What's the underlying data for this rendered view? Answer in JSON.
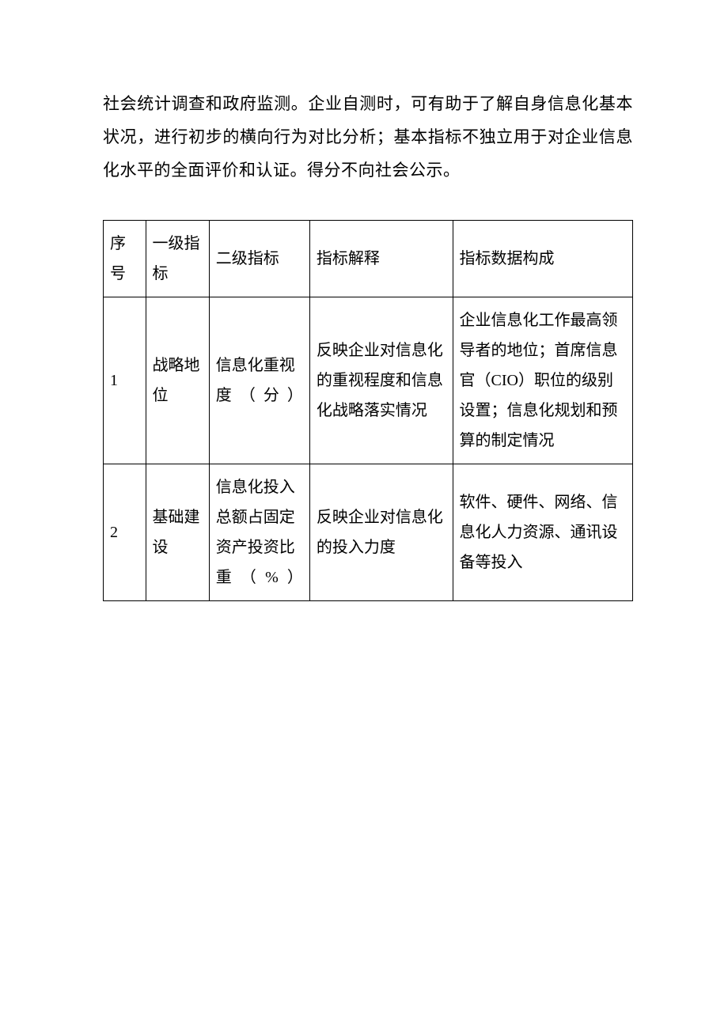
{
  "paragraph": "社会统计调查和政府监测。企业自测时，可有助于了解自身信息化基本状况，进行初步的横向行为对比分析；基本指标不独立用于对企业信息化水平的全面评价和认证。得分不向社会公示。",
  "table": {
    "type": "table",
    "background_color": "#ffffff",
    "border_color": "#000000",
    "font_size": 20,
    "columns": [
      {
        "label": "序号",
        "width_pct": 8,
        "align": "center",
        "bold": false
      },
      {
        "label": "一级指标",
        "width_pct": 12,
        "align": "center",
        "bold": true
      },
      {
        "label": "二级指标",
        "width_pct": 19,
        "align": "center",
        "bold": false
      },
      {
        "label": "指标解释",
        "width_pct": 27,
        "align": "center",
        "bold": false
      },
      {
        "label": "指标数据构成",
        "width_pct": 34,
        "align": "center",
        "bold": false
      }
    ],
    "rows": [
      {
        "seq": "1",
        "level1": "战略地位",
        "level2": "信息化重视度（分）",
        "explain": "反映企业对信息化的重视程度和信息化战略落实情况",
        "composition": "企业信息化工作最高领导者的地位；首席信息官（CIO）职位的级别设置；信息化规划和预算的制定情况"
      },
      {
        "seq": "2",
        "level1": "基础建设",
        "level2": "信息化投入总额占固定资产投资比重（%）",
        "explain": "反映企业对信息化的投入力度",
        "composition": "软件、硬件、网络、信息化人力资源、通讯设备等投入"
      }
    ]
  }
}
